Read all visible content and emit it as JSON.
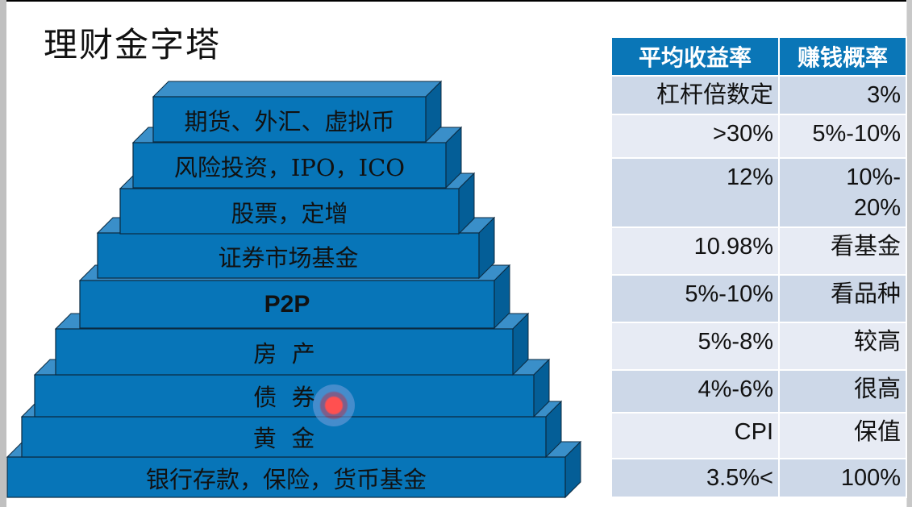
{
  "title": "理财金字塔",
  "colors": {
    "block_front": "#0775b8",
    "block_top": "#3a8fc9",
    "block_side": "#045e97",
    "table_header": "#0a76b7",
    "row_odd": "#cdd8e8",
    "row_even": "#e7ebf4"
  },
  "pyramid": {
    "levels": [
      {
        "label": "期货、外汇、虚拟币",
        "bold": false
      },
      {
        "label": "风险投资，IPO，ICO",
        "bold": false
      },
      {
        "label": "股票，定增",
        "bold": false
      },
      {
        "label": "证券市场基金",
        "bold": false
      },
      {
        "label": "P2P",
        "bold": true
      },
      {
        "label": "房  产",
        "bold": false
      },
      {
        "label": "债  券",
        "bold": false
      },
      {
        "label": "黄  金",
        "bold": false
      },
      {
        "label": "银行存款，保险，货币基金",
        "bold": false
      }
    ]
  },
  "table": {
    "headers": [
      "平均收益率",
      "赚钱概率"
    ],
    "rows": [
      [
        "杠杆倍数定",
        "3%"
      ],
      [
        ">30%",
        "5%-10%"
      ],
      [
        "12%",
        "10%-\n20%"
      ],
      [
        "10.98%",
        "看基金"
      ],
      [
        "5%-10%",
        "看品种"
      ],
      [
        "5%-8%",
        "较高"
      ],
      [
        "4%-6%",
        "很高"
      ],
      [
        "CPI",
        "保值"
      ],
      [
        "3.5%<",
        "100%"
      ]
    ]
  }
}
